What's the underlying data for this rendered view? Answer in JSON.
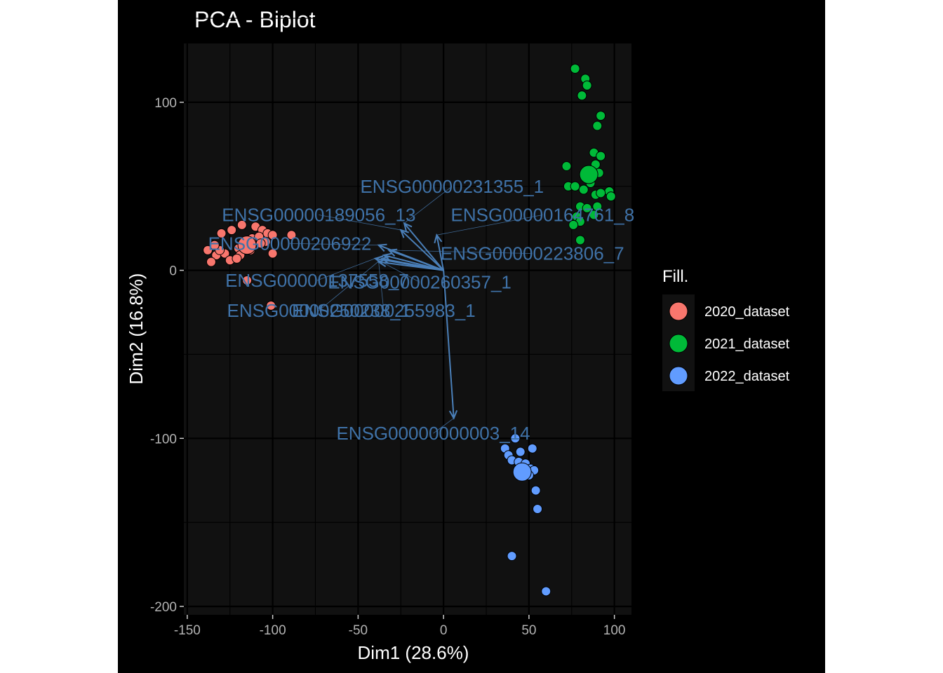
{
  "chart_data": {
    "type": "scatter",
    "title": "PCA - Biplot",
    "xlabel": "Dim1 (28.6%)",
    "ylabel": "Dim2 (16.8%)",
    "xlim": [
      -152,
      110
    ],
    "ylim": [
      -205,
      135
    ],
    "xticks": [
      -150,
      -100,
      -50,
      0,
      50,
      100
    ],
    "yticks": [
      -200,
      -100,
      0,
      100
    ],
    "xtick_labels": [
      "-150",
      "-100",
      "-50",
      "0",
      "50",
      "100"
    ],
    "ytick_labels": [
      "-200",
      "-100",
      "0",
      "100"
    ],
    "grid": true,
    "background": "#111111",
    "legend": {
      "title": "Fill.",
      "position": "right",
      "entries": [
        "2020_dataset",
        "2021_dataset",
        "2022_dataset"
      ]
    },
    "series": [
      {
        "name": "2020_dataset",
        "color": "#F8766D",
        "centroid": [
          -115,
          15
        ],
        "points": [
          [
            -138,
            12
          ],
          [
            -133,
            9
          ],
          [
            -136,
            5
          ],
          [
            -130,
            22
          ],
          [
            -124,
            24
          ],
          [
            -118,
            27
          ],
          [
            -110,
            26
          ],
          [
            -106,
            24
          ],
          [
            -103,
            22
          ],
          [
            -100,
            21
          ],
          [
            -89,
            21
          ],
          [
            -128,
            10
          ],
          [
            -125,
            6
          ],
          [
            -120,
            13
          ],
          [
            -116,
            16
          ],
          [
            -112,
            19
          ],
          [
            -108,
            20
          ],
          [
            -104,
            17
          ],
          [
            -100,
            10
          ],
          [
            -131,
            12
          ],
          [
            -119,
            9
          ],
          [
            -113,
            12
          ],
          [
            -107,
            16
          ],
          [
            -134,
            15
          ],
          [
            -121,
            7
          ],
          [
            -115,
            -6
          ],
          [
            -101,
            -21
          ]
        ]
      },
      {
        "name": "2021_dataset",
        "color": "#00BA38",
        "centroid": [
          85,
          57
        ],
        "points": [
          [
            77,
            120
          ],
          [
            83,
            114
          ],
          [
            84,
            110
          ],
          [
            81,
            104
          ],
          [
            92,
            92
          ],
          [
            90,
            86
          ],
          [
            88,
            70
          ],
          [
            92,
            68
          ],
          [
            89,
            63
          ],
          [
            91,
            58
          ],
          [
            97,
            47
          ],
          [
            98,
            44
          ],
          [
            89,
            45
          ],
          [
            72,
            62
          ],
          [
            73,
            50
          ],
          [
            77,
            50
          ],
          [
            82,
            48
          ],
          [
            86,
            52
          ],
          [
            80,
            38
          ],
          [
            84,
            37
          ],
          [
            90,
            38
          ],
          [
            78,
            32
          ],
          [
            80,
            29
          ],
          [
            76,
            27
          ],
          [
            88,
            33
          ],
          [
            80,
            18
          ],
          [
            92,
            46
          ]
        ]
      },
      {
        "name": "2022_dataset",
        "color": "#619CFF",
        "centroid": [
          46,
          -120
        ],
        "points": [
          [
            42,
            -100
          ],
          [
            36,
            -106
          ],
          [
            52,
            -106
          ],
          [
            45,
            -108
          ],
          [
            38,
            -110
          ],
          [
            40,
            -113
          ],
          [
            44,
            -114
          ],
          [
            48,
            -115
          ],
          [
            51,
            -118
          ],
          [
            53,
            -119
          ],
          [
            50,
            -122
          ],
          [
            54,
            -131
          ],
          [
            55,
            -142
          ],
          [
            40,
            -170
          ],
          [
            60,
            -191
          ]
        ]
      }
    ],
    "variables": [
      {
        "label": "ENSG00000231355_1",
        "tip": [
          -23,
          28
        ],
        "label_pos": [
          5,
          50
        ]
      },
      {
        "label": "ENSG00000189056_13",
        "tip": [
          -25,
          24
        ],
        "label_pos": [
          -73,
          33
        ]
      },
      {
        "label": "ENSG00000164761_8",
        "tip": [
          -4,
          21
        ],
        "label_pos": [
          58,
          33
        ]
      },
      {
        "label": "ENSG00000206922",
        "tip": [
          -38,
          15
        ],
        "label_pos": [
          -90,
          16
        ]
      },
      {
        "label": "ENSG00000223806_7",
        "tip": [
          -32,
          12
        ],
        "label_pos": [
          52,
          10
        ]
      },
      {
        "label": "ENSG00000137558_7",
        "tip": [
          -35,
          9
        ],
        "label_pos": [
          -74,
          -6
        ]
      },
      {
        "label": "ENSG00000260357_1",
        "tip": [
          -40,
          7
        ],
        "label_pos": [
          -14,
          -7
        ]
      },
      {
        "label": "ENSG00000250238_1",
        "tip": [
          -36,
          7
        ],
        "label_pos": [
          -73,
          -24
        ]
      },
      {
        "label": "ENSG00000255983_1",
        "tip": [
          -38,
          5
        ],
        "label_pos": [
          -35,
          -24
        ]
      },
      {
        "label": "ENSG00000000003_14",
        "tip": [
          6,
          -88
        ],
        "label_pos": [
          -6,
          -97
        ]
      }
    ]
  }
}
